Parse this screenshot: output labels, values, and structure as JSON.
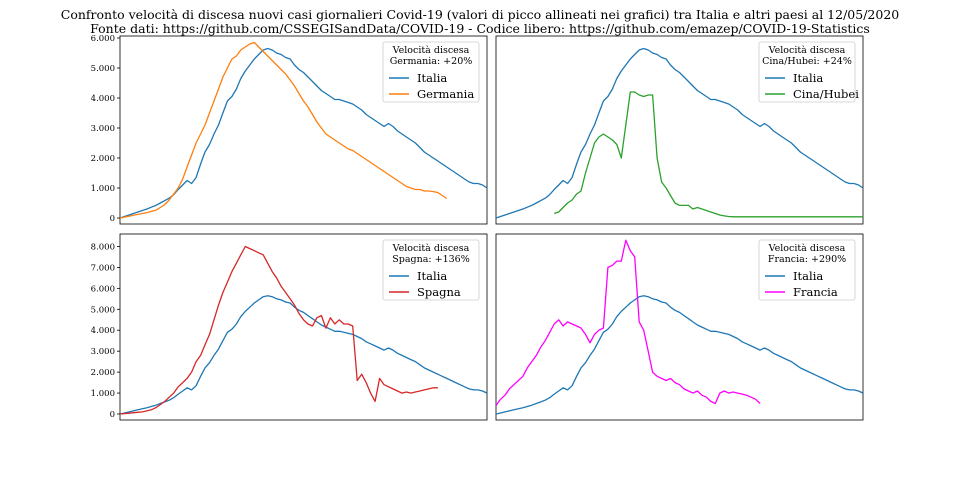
{
  "title": {
    "line1": "Confronto velocità di discesa nuovi casi giornalieri Covid-19 (valori di picco allineati nei grafici) tra Italia e altri paesi al 12/05/2020",
    "line2": "Fonte dati: https://github.com/CSSEGISandData/COVID-19 - Codice libero: https://github.com/emazep/COVID-19-Statistics"
  },
  "colors": {
    "italia": "#1f77b4",
    "germania": "#ff7f0e",
    "cina": "#2ca02c",
    "spagna": "#d62728",
    "francia": "#ff00ff"
  },
  "italia_values": [
    0,
    50,
    100,
    150,
    200,
    250,
    300,
    360,
    420,
    500,
    580,
    660,
    780,
    950,
    1100,
    1250,
    1150,
    1350,
    1800,
    2200,
    2450,
    2800,
    3100,
    3500,
    3900,
    4050,
    4300,
    4650,
    4900,
    5100,
    5300,
    5450,
    5600,
    5650,
    5600,
    5500,
    5450,
    5350,
    5300,
    5100,
    4950,
    4850,
    4700,
    4550,
    4400,
    4250,
    4150,
    4050,
    3950,
    3950,
    3900,
    3850,
    3800,
    3700,
    3600,
    3450,
    3350,
    3250,
    3150,
    3050,
    3150,
    3050,
    2900,
    2800,
    2700,
    2600,
    2500,
    2350,
    2200,
    2100,
    2000,
    1900,
    1800,
    1700,
    1600,
    1500,
    1400,
    1300,
    1200,
    1150,
    1150,
    1100,
    1000
  ],
  "chart_data": [
    {
      "type": "line",
      "legend_title": "Velocità discesa",
      "legend_subtitle": "Germania: +20%",
      "legend_position": "top-right",
      "ylim": [
        0,
        6000
      ],
      "yticks": [
        "0",
        "1.000",
        "2.000",
        "3.000",
        "4.000",
        "5.000",
        "6.000"
      ],
      "series": [
        {
          "name": "Italia",
          "color": "#1f77b4",
          "start": 0,
          "values": "italia"
        },
        {
          "name": "Germania",
          "color": "#ff7f0e",
          "start": 0,
          "values": [
            0,
            30,
            60,
            90,
            120,
            150,
            180,
            220,
            260,
            350,
            450,
            600,
            800,
            1000,
            1300,
            1700,
            2100,
            2500,
            2800,
            3100,
            3500,
            3900,
            4300,
            4700,
            5000,
            5300,
            5400,
            5600,
            5700,
            5800,
            5850,
            5700,
            5550,
            5400,
            5250,
            5100,
            4950,
            4800,
            4600,
            4400,
            4150,
            3900,
            3700,
            3450,
            3200,
            3000,
            2800,
            2700,
            2600,
            2500,
            2400,
            2300,
            2250,
            2150,
            2050,
            1950,
            1850,
            1750,
            1650,
            1550,
            1450,
            1350,
            1250,
            1150,
            1050,
            1000,
            950,
            950,
            900,
            900,
            880,
            850,
            750,
            650
          ]
        }
      ]
    },
    {
      "type": "line",
      "legend_title": "Velocità discesa",
      "legend_subtitle": "Cina/Hubei: +24%",
      "legend_position": "top-right",
      "ylim": [
        0,
        6000
      ],
      "yticks": [],
      "series": [
        {
          "name": "Italia",
          "color": "#1f77b4",
          "start": 0,
          "values": "italia"
        },
        {
          "name": "Cina/Hubei",
          "color": "#2ca02c",
          "start": 13,
          "values": [
            150,
            200,
            350,
            500,
            600,
            800,
            900,
            1500,
            2000,
            2500,
            2700,
            2800,
            2700,
            2600,
            2450,
            2000,
            3100,
            4200,
            4200,
            4100,
            4050,
            4100,
            4100,
            2000,
            1200,
            1000,
            750,
            500,
            420,
            420,
            420,
            300,
            350,
            300,
            250,
            200,
            150,
            100,
            70,
            50,
            40,
            40,
            40,
            40,
            40,
            40,
            40,
            40,
            40,
            40,
            40,
            40,
            40,
            40,
            40,
            40,
            40,
            40,
            40,
            40,
            40,
            40,
            40,
            40,
            40,
            40,
            40,
            40,
            40,
            40
          ]
        }
      ]
    },
    {
      "type": "line",
      "legend_title": "Velocità discesa",
      "legend_subtitle": "Spagna: +136%",
      "legend_position": "top-right",
      "ylim": [
        0,
        8500
      ],
      "yticks": [
        "0",
        "1.000",
        "2.000",
        "3.000",
        "4.000",
        "5.000",
        "6.000",
        "7.000",
        "8.000"
      ],
      "series": [
        {
          "name": "Italia",
          "color": "#1f77b4",
          "start": 0,
          "values": "italia"
        },
        {
          "name": "Spagna",
          "color": "#d62728",
          "start": 0,
          "values": [
            0,
            20,
            40,
            60,
            80,
            100,
            150,
            200,
            300,
            450,
            600,
            800,
            1000,
            1300,
            1500,
            1700,
            2000,
            2500,
            2800,
            3300,
            3800,
            4500,
            5200,
            5800,
            6300,
            6800,
            7200,
            7600,
            8000,
            7900,
            7800,
            7700,
            7600,
            7200,
            6800,
            6500,
            6100,
            5800,
            5500,
            5200,
            4800,
            4500,
            4300,
            4200,
            4600,
            4700,
            4100,
            4600,
            4300,
            4500,
            4300,
            4300,
            4200,
            1600,
            1900,
            1500,
            1000,
            600,
            1700,
            1400,
            1300,
            1200,
            1100,
            1000,
            1050,
            1000,
            1050,
            1100,
            1150,
            1200,
            1250,
            1250
          ]
        }
      ]
    },
    {
      "type": "line",
      "legend_title": "Velocità discesa",
      "legend_subtitle": "Francia: +290%",
      "legend_position": "top-right",
      "ylim": [
        0,
        8500
      ],
      "yticks": [],
      "series": [
        {
          "name": "Italia",
          "color": "#1f77b4",
          "start": 0,
          "values": "italia"
        },
        {
          "name": "Francia",
          "color": "#ff00ff",
          "start": 0,
          "values": [
            400,
            700,
            900,
            1200,
            1400,
            1600,
            1800,
            2200,
            2500,
            2800,
            3200,
            3500,
            3900,
            4300,
            4500,
            4200,
            4400,
            4300,
            4200,
            4100,
            3800,
            3400,
            3800,
            4000,
            4100,
            7000,
            7100,
            7300,
            7300,
            8300,
            7800,
            7500,
            4400,
            4000,
            3000,
            2000,
            1800,
            1700,
            1600,
            1700,
            1500,
            1400,
            1200,
            1100,
            1000,
            1100,
            900,
            800,
            600,
            500,
            1000,
            1100,
            1000,
            1050,
            1000,
            950,
            900,
            800,
            700,
            500
          ]
        }
      ]
    }
  ]
}
